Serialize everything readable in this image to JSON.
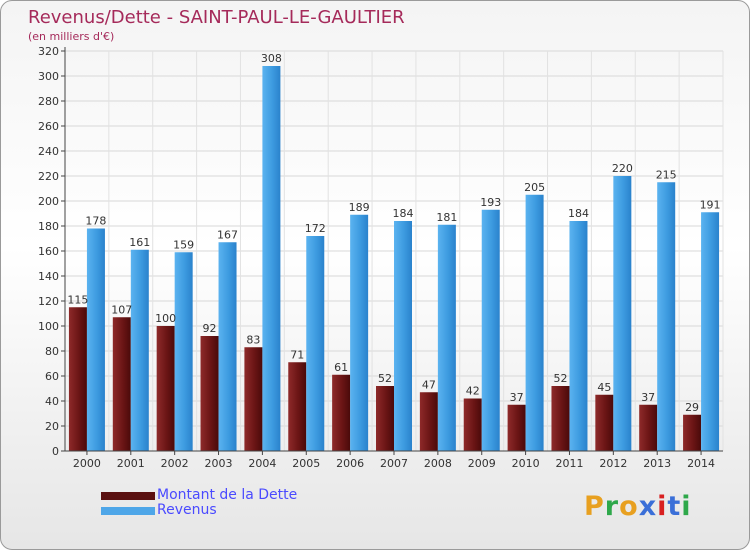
{
  "title": "Revenus/Dette - SAINT-PAUL-LE-GAULTIER",
  "subtitle": "(en milliers d'€)",
  "colors": {
    "dette": "#7a1f1f",
    "revenus": "#4ea6e8",
    "title": "#a52a5a",
    "legend_text": "#4a4aff"
  },
  "legend": [
    {
      "label": "Montant de la Dette",
      "color": "#6b1414"
    },
    {
      "label": "Revenus",
      "color": "#4ea6e8"
    }
  ],
  "logo": {
    "text": "Proxiti",
    "letters": [
      "P",
      "r",
      "o",
      "x",
      "i",
      "t",
      "i"
    ],
    "letter_colors": [
      "#e8a020",
      "#2ea84a",
      "#e8a020",
      "#3a6fd8",
      "#d82020",
      "#3a6fd8",
      "#2ea84a"
    ]
  },
  "chart_data": {
    "type": "bar",
    "categories": [
      "2000",
      "2001",
      "2002",
      "2003",
      "2004",
      "2005",
      "2006",
      "2007",
      "2008",
      "2009",
      "2010",
      "2011",
      "2012",
      "2013",
      "2014"
    ],
    "series": [
      {
        "name": "Montant de la Dette",
        "values": [
          115,
          107,
          100,
          92,
          83,
          71,
          61,
          52,
          47,
          42,
          37,
          52,
          45,
          37,
          29
        ]
      },
      {
        "name": "Revenus",
        "values": [
          178,
          161,
          159,
          167,
          308,
          172,
          189,
          184,
          181,
          193,
          205,
          184,
          220,
          215,
          191
        ]
      }
    ],
    "ylim": [
      0,
      320
    ],
    "ytick_step": 20,
    "grid": true,
    "data_labels": true,
    "legend_placement": "bottom-left"
  }
}
